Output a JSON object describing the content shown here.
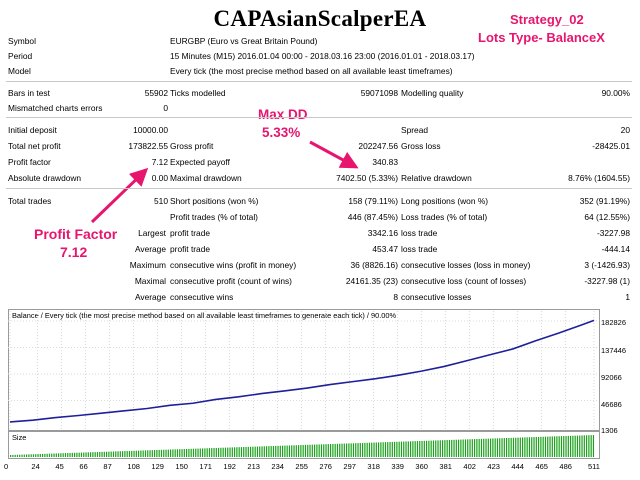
{
  "header": {
    "title": "CAPAsianScalperEA",
    "strategy": "Strategy_02",
    "lots_type": "Lots Type- BalanceX"
  },
  "annotations": {
    "max_dd_label": "Max DD",
    "max_dd_value": "5.33%",
    "pf_label": "Profit Factor",
    "pf_value": "7.12"
  },
  "info": {
    "symbol_label": "Symbol",
    "symbol_value": "EURGBP (Euro vs Great Britain Pound)",
    "period_label": "Period",
    "period_value": "15 Minutes (M15) 2016.01.04 00:00 - 2018.03.16 23:00 (2016.01.01 - 2018.03.17)",
    "model_label": "Model",
    "model_value": "Every tick (the most precise method based on all available least timeframes)"
  },
  "stats": {
    "bars_label": "Bars in test",
    "bars_value": "55902",
    "ticks_label": "Ticks modelled",
    "ticks_value": "59071098",
    "quality_label": "Modelling quality",
    "quality_value": "90.00%",
    "mismatch_label": "Mismatched charts errors",
    "mismatch_value": "0",
    "deposit_label": "Initial deposit",
    "deposit_value": "10000.00",
    "spread_label": "Spread",
    "spread_value": "20",
    "net_label": "Total net profit",
    "net_value": "173822.55",
    "gprofit_label": "Gross profit",
    "gprofit_value": "202247.56",
    "gloss_label": "Gross loss",
    "gloss_value": "-28425.01",
    "pf_label": "Profit factor",
    "pf_value": "7.12",
    "payoff_label": "Expected payoff",
    "payoff_value": "340.83",
    "absdd_label": "Absolute drawdown",
    "absdd_value": "0.00",
    "maxdd_label": "Maximal drawdown",
    "maxdd_value": "7402.50 (5.33%)",
    "reldd_label": "Relative drawdown",
    "reldd_value": "8.76% (1604.55)",
    "trades_label": "Total trades",
    "trades_value": "510",
    "short_label": "Short positions (won %)",
    "short_value": "158 (79.11%)",
    "long_label": "Long positions (won %)",
    "long_value": "352 (91.19%)",
    "ptrades_label": "Profit trades (% of total)",
    "ptrades_value": "446 (87.45%)",
    "ltrades_label": "Loss trades (% of total)",
    "ltrades_value": "64 (12.55%)",
    "largest_label": "Largest",
    "avg_label": "Average",
    "maximum_label": "Maximum",
    "maximal_label": "Maximal",
    "lpt_label": "profit trade",
    "lpt_value": "3342.16",
    "llt_label": "loss trade",
    "llt_value": "-3227.98",
    "apt_label": "profit trade",
    "apt_value": "453.47",
    "alt_label": "loss trade",
    "alt_value": "-444.14",
    "mcw_label": "consecutive wins (profit in money)",
    "mcw_value": "36 (8826.16)",
    "mcl_label": "consecutive losses (loss in money)",
    "mcl_value": "3 (-1426.93)",
    "mcp_label": "consecutive profit (count of wins)",
    "mcp_value": "24161.35 (23)",
    "mcloss_label": "consecutive loss (count of losses)",
    "mcloss_value": "-3227.98 (1)",
    "acw_label": "consecutive wins",
    "acw_value": "8",
    "acl_label": "consecutive losses",
    "acl_value": "1"
  },
  "chart_data": {
    "type": "line",
    "title": "Balance / Every tick (the most precise method based on all available least timeframes to generate each tick) / 90.00%",
    "size_label": "Size",
    "y_ticks": [
      "182826",
      "137446",
      "92066",
      "46686"
    ],
    "size_tick": "1306",
    "x_ticks": [
      "0",
      "24",
      "45",
      "66",
      "87",
      "108",
      "129",
      "150",
      "171",
      "192",
      "213",
      "234",
      "255",
      "276",
      "297",
      "318",
      "339",
      "360",
      "381",
      "402",
      "423",
      "444",
      "465",
      "486",
      "511"
    ],
    "ylim": [
      1306,
      182826
    ],
    "xlim": [
      0,
      511
    ],
    "series": [
      {
        "color": "#1f1f9a",
        "x": [
          0,
          20,
          40,
          60,
          80,
          100,
          120,
          140,
          160,
          180,
          200,
          220,
          240,
          260,
          280,
          300,
          320,
          340,
          360,
          380,
          400,
          420,
          440,
          460,
          480,
          500,
          511
        ],
        "values": [
          10000,
          13000,
          17500,
          21000,
          25000,
          29000,
          33000,
          38500,
          42000,
          48500,
          53000,
          58500,
          63000,
          68000,
          74000,
          79000,
          84000,
          90000,
          97000,
          105000,
          115000,
          125000,
          135000,
          149000,
          162000,
          176000,
          184000
        ]
      }
    ],
    "line_color": "#1f1f9a",
    "size_color": "#1aa01a"
  }
}
